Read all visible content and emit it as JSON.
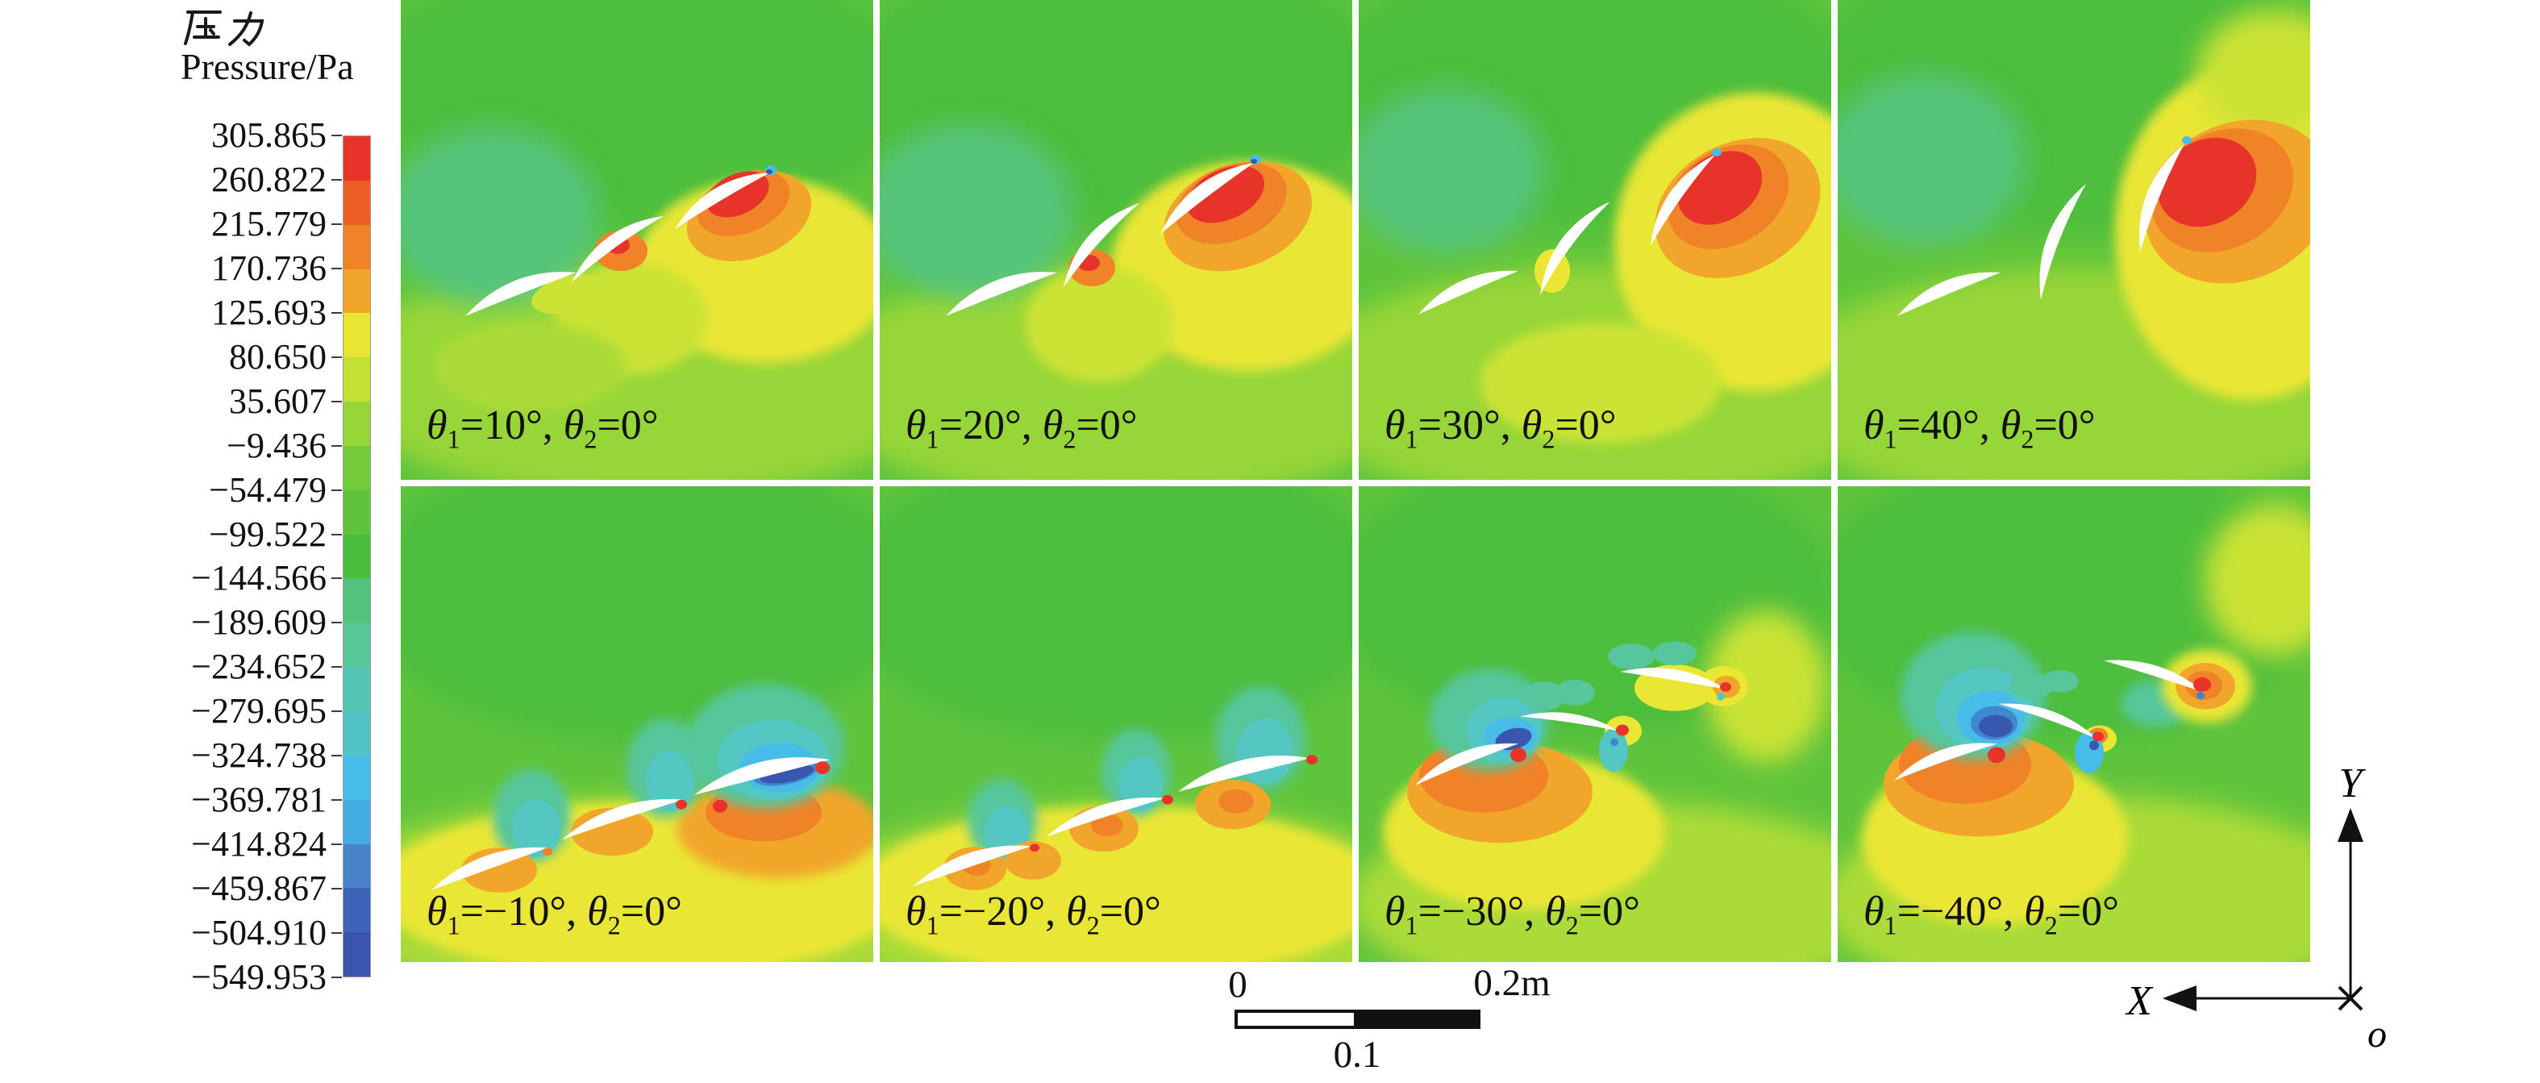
{
  "figure": {
    "legend": {
      "title_cjk": "压力",
      "title_en": "Pressure/Pa",
      "tick_labels": [
        "305.865",
        "260.822",
        "215.779",
        "170.736",
        "125.693",
        "80.650",
        "35.607",
        "−9.436",
        "−54.479",
        "−99.522",
        "−144.566",
        "−189.609",
        "−234.652",
        "−279.695",
        "−324.738",
        "−369.781",
        "−414.824",
        "−459.867",
        "−504.910",
        "−549.953"
      ]
    },
    "colorbar_colors": [
      "#e8332a",
      "#ec5f27",
      "#f08227",
      "#f1a62b",
      "#e9e533",
      "#c3e034",
      "#97d639",
      "#73ca3b",
      "#5fc43c",
      "#4abc3e",
      "#52c27d",
      "#57c699",
      "#54c6b2",
      "#52c4c6",
      "#48bce8",
      "#42abe0",
      "#4a82ca",
      "#3e64ba",
      "#3a55ae"
    ],
    "panels": [
      {
        "t1sym": "θ",
        "t1sub": "1",
        "t1rest": "=10°, ",
        "t2sym": "θ",
        "t2sub": "2",
        "t2rest": "=0°"
      },
      {
        "t1sym": "θ",
        "t1sub": "1",
        "t1rest": "=20°, ",
        "t2sym": "θ",
        "t2sub": "2",
        "t2rest": "=0°"
      },
      {
        "t1sym": "θ",
        "t1sub": "1",
        "t1rest": "=30°, ",
        "t2sym": "θ",
        "t2sub": "2",
        "t2rest": "=0°"
      },
      {
        "t1sym": "θ",
        "t1sub": "1",
        "t1rest": "=40°, ",
        "t2sym": "θ",
        "t2sub": "2",
        "t2rest": "=0°"
      },
      {
        "t1sym": "θ",
        "t1sub": "1",
        "t1rest": "=−10°, ",
        "t2sym": "θ",
        "t2sub": "2",
        "t2rest": "=0°"
      },
      {
        "t1sym": "θ",
        "t1sub": "1",
        "t1rest": "=−20°, ",
        "t2sym": "θ",
        "t2sub": "2",
        "t2rest": "=0°"
      },
      {
        "t1sym": "θ",
        "t1sub": "1",
        "t1rest": "=−30°, ",
        "t2sym": "θ",
        "t2sub": "2",
        "t2rest": "=0°"
      },
      {
        "t1sym": "θ",
        "t1sub": "1",
        "t1rest": "=−40°, ",
        "t2sym": "θ",
        "t2sub": "2",
        "t2rest": "=0°"
      }
    ],
    "scalebar": {
      "zero": "0",
      "max": "0.2m",
      "mid": "0.1"
    },
    "axes": {
      "x_label": "X",
      "y_label": "Y",
      "origin_label": "o"
    }
  },
  "chart_data": {
    "type": "heatmap",
    "title": "压力 Pressure/Pa — pressure contour fields around a three-element wingsail for varying flap angles",
    "grid_layout": {
      "rows": 2,
      "cols": 4
    },
    "colorbar": {
      "label_cjk": "压力",
      "label_en": "Pressure/Pa",
      "levels": [
        305.865,
        260.822,
        215.779,
        170.736,
        125.693,
        80.65,
        35.607,
        -9.436,
        -54.479,
        -99.522,
        -144.566,
        -189.609,
        -234.652,
        -279.695,
        -324.738,
        -369.781,
        -414.824,
        -459.867,
        -504.91,
        -549.953
      ],
      "colors": [
        "#e8332a",
        "#ec5f27",
        "#f08227",
        "#f1a62b",
        "#e9e533",
        "#c3e034",
        "#97d639",
        "#73ca3b",
        "#5fc43c",
        "#4abc3e",
        "#52c27d",
        "#57c699",
        "#54c6b2",
        "#52c4c6",
        "#48bce8",
        "#42abe0",
        "#4a82ca",
        "#3e64ba",
        "#3a55ae"
      ],
      "range": [
        -549.953,
        305.865
      ],
      "orientation": "vertical",
      "position": "left"
    },
    "panels": [
      {
        "row": 1,
        "col": 1,
        "theta1_deg": 10,
        "theta2_deg": 0
      },
      {
        "row": 1,
        "col": 2,
        "theta1_deg": 20,
        "theta2_deg": 0
      },
      {
        "row": 1,
        "col": 3,
        "theta1_deg": 30,
        "theta2_deg": 0
      },
      {
        "row": 1,
        "col": 4,
        "theta1_deg": 40,
        "theta2_deg": 0
      },
      {
        "row": 2,
        "col": 1,
        "theta1_deg": -10,
        "theta2_deg": 0
      },
      {
        "row": 2,
        "col": 2,
        "theta1_deg": -20,
        "theta2_deg": 0
      },
      {
        "row": 2,
        "col": 3,
        "theta1_deg": -30,
        "theta2_deg": 0
      },
      {
        "row": 2,
        "col": 4,
        "theta1_deg": -40,
        "theta2_deg": 0
      }
    ],
    "scale_bar": {
      "ticks": [
        0,
        0.1,
        0.2
      ],
      "unit": "m"
    },
    "axes": {
      "x": "X (arrow pointing left)",
      "y": "Y (arrow pointing up)",
      "origin": "o"
    }
  }
}
